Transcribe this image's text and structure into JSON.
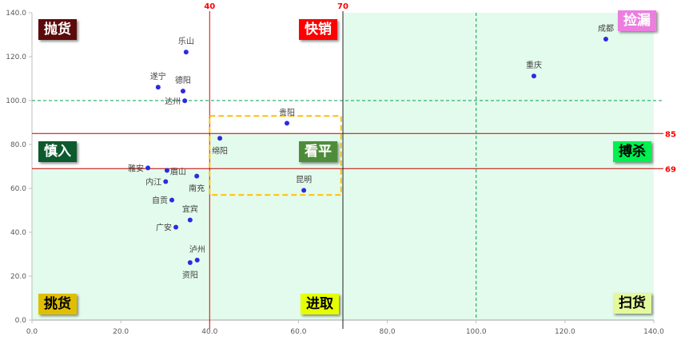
{
  "chart_data": {
    "type": "scatter",
    "xlim": [
      0,
      140
    ],
    "ylim": [
      0,
      140
    ],
    "x_ticks": [
      "0.0",
      "20.0",
      "40.0",
      "60.0",
      "80.0",
      "100.0",
      "120.0",
      "140.0"
    ],
    "y_ticks": [
      "0.0",
      "20.0",
      "40.0",
      "60.0",
      "80.0",
      "100.0",
      "120.0",
      "140.0"
    ],
    "grid": false,
    "point_color": "#2b2be0",
    "points": [
      {
        "label": "乐山",
        "x": 34.7,
        "y": 122.1
      },
      {
        "label": "遂宁",
        "x": 28.4,
        "y": 106.1
      },
      {
        "label": "德阳",
        "x": 34.0,
        "y": 104.3
      },
      {
        "label": "达州",
        "x": 34.4,
        "y": 99.9
      },
      {
        "label": "成都",
        "x": 129.2,
        "y": 128.0
      },
      {
        "label": "重庆",
        "x": 113.0,
        "y": 111.2
      },
      {
        "label": "贵阳",
        "x": 57.4,
        "y": 89.7
      },
      {
        "label": "绵阳",
        "x": 42.3,
        "y": 82.8
      },
      {
        "label": "雅安",
        "x": 26.1,
        "y": 69.3
      },
      {
        "label": "眉山",
        "x": 30.4,
        "y": 68.2
      },
      {
        "label": "内江",
        "x": 30.1,
        "y": 63.1
      },
      {
        "label": "南充",
        "x": 37.1,
        "y": 65.6
      },
      {
        "label": "昆明",
        "x": 61.2,
        "y": 59.1
      },
      {
        "label": "自贡",
        "x": 31.5,
        "y": 54.7
      },
      {
        "label": "宜宾",
        "x": 35.6,
        "y": 45.6
      },
      {
        "label": "广安",
        "x": 32.4,
        "y": 42.3
      },
      {
        "label": "泸州",
        "x": 37.2,
        "y": 27.3
      },
      {
        "label": "资阳",
        "x": 35.6,
        "y": 26.2
      }
    ],
    "reference_lines": {
      "vertical": [
        {
          "x": 40,
          "label": "40",
          "color": "#e00000"
        },
        {
          "x": 70,
          "label": "70",
          "color": "#222222"
        },
        {
          "x": 100,
          "label": "",
          "color": "#00a050",
          "dashed": true
        }
      ],
      "horizontal": [
        {
          "y": 85,
          "label": "85",
          "color": "#c00000"
        },
        {
          "y": 69,
          "label": "69",
          "color": "#c00000"
        },
        {
          "y": 100,
          "label": "",
          "color": "#00a050",
          "dashed": true
        }
      ]
    },
    "highlight_box": {
      "x": [
        40,
        69.6
      ],
      "y": [
        57,
        93
      ],
      "color": "#ffc000"
    },
    "shaded_color": "#e3fbec",
    "quadrants": [
      {
        "label": "抛货",
        "bg": "#5c0a0a",
        "fg": "#ffffff"
      },
      {
        "label": "快销",
        "bg": "#ff0000",
        "fg": "#ffffff"
      },
      {
        "label": "捡漏",
        "bg": "#ec7ee0",
        "fg": "#ffffff"
      },
      {
        "label": "慎入",
        "bg": "#0c5a2e",
        "fg": "#ffffff"
      },
      {
        "label": "看平",
        "bg": "#4e8c3a",
        "fg": "#ffffff"
      },
      {
        "label": "搏杀",
        "bg": "#00f050",
        "fg": "#000000"
      },
      {
        "label": "挑货",
        "bg": "#e0bf00",
        "fg": "#000000"
      },
      {
        "label": "进取",
        "bg": "#e6ff00",
        "fg": "#000000"
      },
      {
        "label": "扫货",
        "bg": "#e4f99c",
        "fg": "#000000"
      }
    ]
  }
}
